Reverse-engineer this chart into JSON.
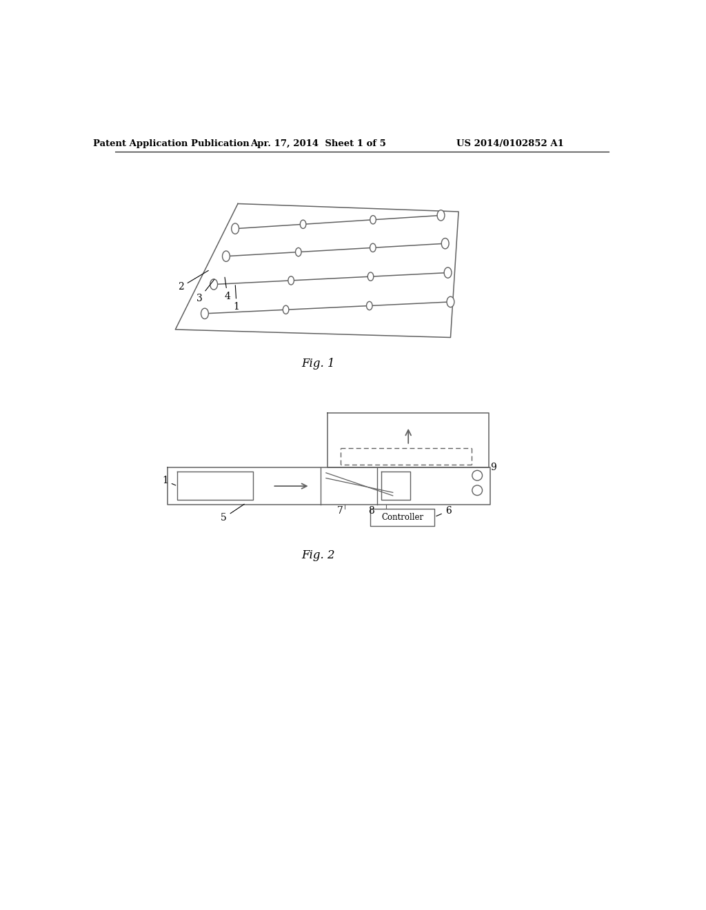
{
  "bg_color": "#ffffff",
  "header_text": "Patent Application Publication",
  "header_date": "Apr. 17, 2014  Sheet 1 of 5",
  "header_patent": "US 2014/0102852 A1",
  "fig1_label": "Fig. 1",
  "fig2_label": "Fig. 2",
  "line_color": "#606060",
  "label_color": "#000000"
}
